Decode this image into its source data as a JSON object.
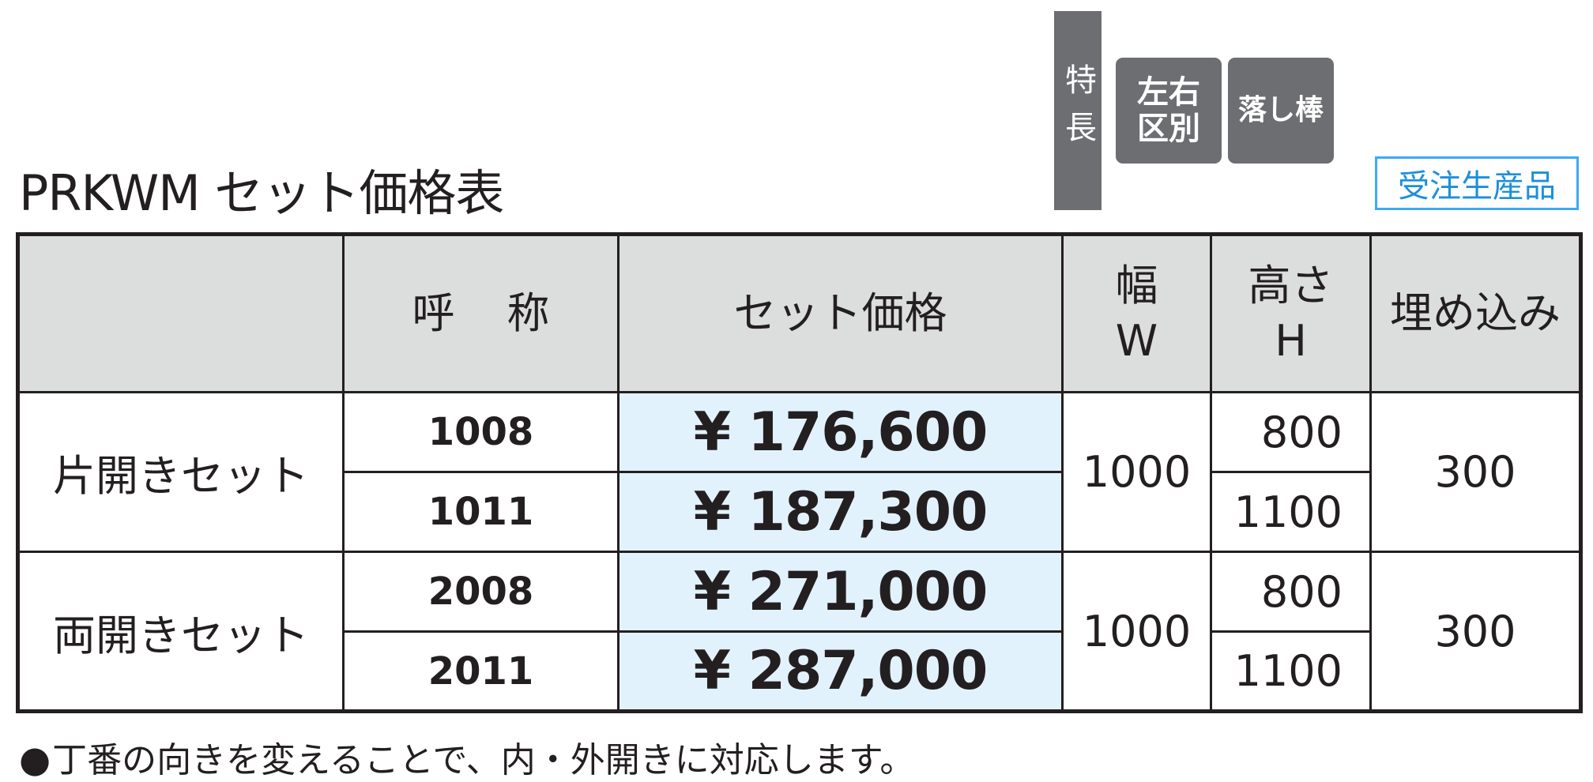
{
  "title": "PRKWM セット価格表",
  "feature_bar": "特長",
  "badges": {
    "left_right": "左右区別",
    "drop_bar": "落し棒"
  },
  "order_badge": "受注生産品",
  "table": {
    "headers": {
      "name": "呼称",
      "price": "セット価格",
      "width": "幅",
      "width_symbol": "W",
      "height": "高さ",
      "height_symbol": "H",
      "embed": "埋め込み"
    },
    "groups": [
      {
        "label": "片開きセット",
        "width": "1000",
        "embed": "300",
        "rows": [
          {
            "name": "1008",
            "price": "¥ 176,600",
            "height": "800"
          },
          {
            "name": "1011",
            "price": "¥ 187,300",
            "height": "1100"
          }
        ]
      },
      {
        "label": "両開きセット",
        "width": "1000",
        "embed": "300",
        "rows": [
          {
            "name": "2008",
            "price": "¥ 271,000",
            "height": "800"
          },
          {
            "name": "2011",
            "price": "¥ 287,000",
            "height": "1100"
          }
        ]
      }
    ]
  },
  "footnote": {
    "bullet": "●",
    "text": "丁番の向きを変えることで、内・外開きに対応します。"
  }
}
